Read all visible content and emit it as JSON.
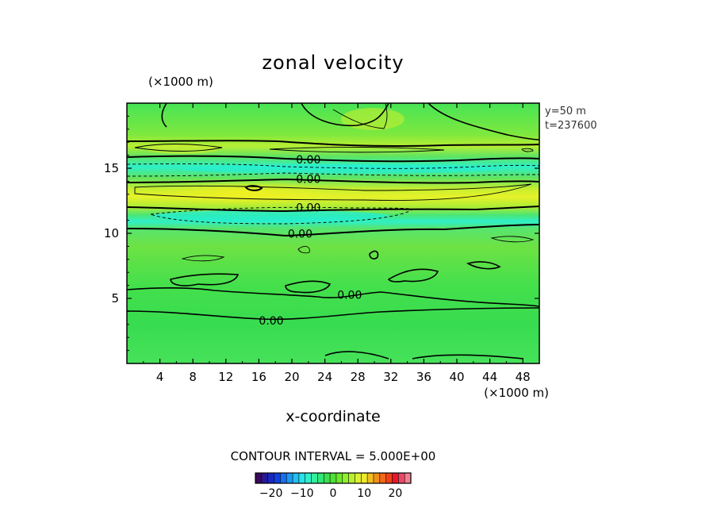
{
  "chart_data": {
    "type": "heatmap",
    "title": "zonal velocity",
    "xlabel": "x-coordinate",
    "x_units": "(×1000 m)",
    "y_units": "(×1000 m)",
    "xlim": [
      0,
      50
    ],
    "ylim": [
      0,
      20
    ],
    "x_ticks": [
      4,
      8,
      12,
      16,
      20,
      24,
      28,
      32,
      36,
      40,
      44,
      48
    ],
    "y_ticks": [
      5,
      10,
      15
    ],
    "meta": [
      "y=50 m",
      "t=237600"
    ],
    "contour_interval_text": "CONTOUR INTERVAL = 5.000E+00",
    "contour_interval": 5.0,
    "contour_labels": [
      {
        "text": "0.00",
        "x": 22,
        "y": 15.5
      },
      {
        "text": "0.00",
        "x": 22,
        "y": 14.0
      },
      {
        "text": "0.00",
        "x": 22,
        "y": 11.8
      },
      {
        "text": "0.00",
        "x": 21,
        "y": 9.8
      },
      {
        "text": "0.00",
        "x": 27,
        "y": 5.1
      },
      {
        "text": "0.00",
        "x": 17.5,
        "y": 3.1
      }
    ],
    "colorbar": {
      "range": [
        -25,
        25
      ],
      "tick_values": [
        -20,
        -10,
        0,
        10,
        20
      ],
      "tick_labels": [
        "−20",
        "−10",
        "0",
        "10",
        "20"
      ],
      "colors": [
        "#3a0a5c",
        "#2a1890",
        "#1a28c0",
        "#1040e0",
        "#1a6ef0",
        "#1e98f0",
        "#20c0f0",
        "#28e0e8",
        "#30f0c8",
        "#30f0a0",
        "#30e878",
        "#3ae050",
        "#50e038",
        "#6ce82c",
        "#90f02c",
        "#b8f030",
        "#dcf030",
        "#f0e828",
        "#f0c020",
        "#f09018",
        "#f06818",
        "#f04018",
        "#e81828",
        "#e84868",
        "#f08090"
      ]
    },
    "colors": {
      "background_field": "#3ee45a",
      "jet_core": "#e6f22a",
      "reverse_band": "#2ef0c8",
      "frame": "#000000"
    }
  }
}
